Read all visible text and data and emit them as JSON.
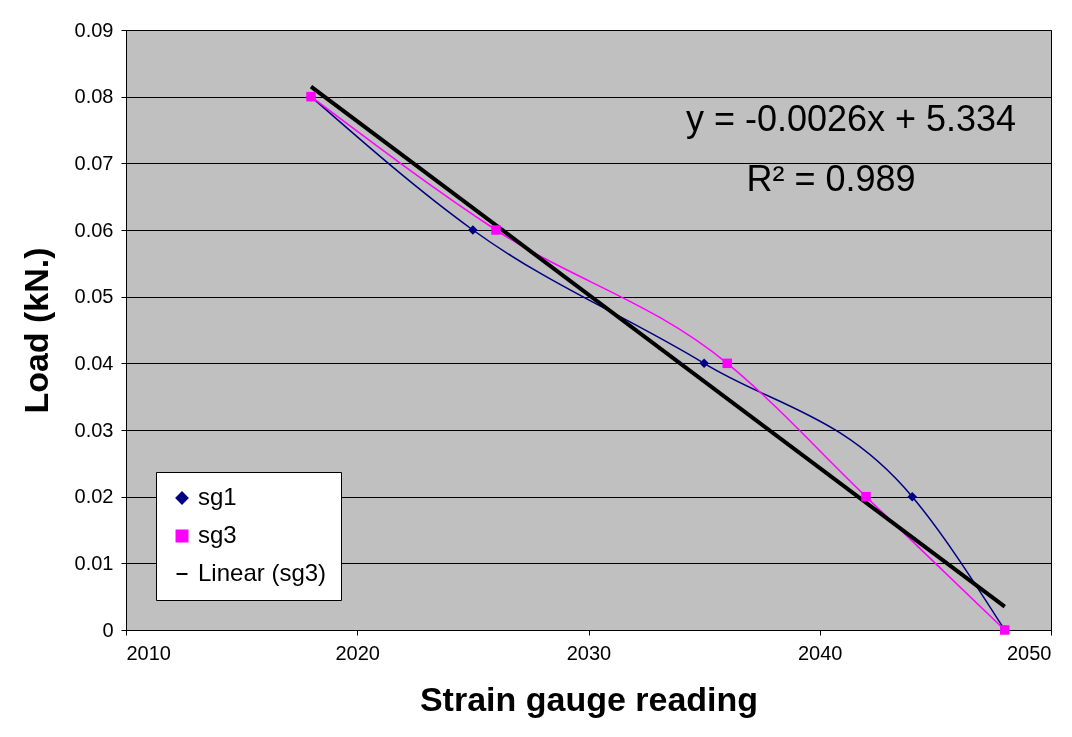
{
  "chart_data": {
    "type": "line",
    "xlabel": "Strain gauge reading",
    "ylabel": "Load (kN.)",
    "xlim": [
      2010,
      2050
    ],
    "xticks": [
      2010,
      2020,
      2030,
      2040,
      2050
    ],
    "ylim": [
      0,
      0.09
    ],
    "yticks": [
      0,
      0.01,
      0.02,
      0.03,
      0.04,
      0.05,
      0.06,
      0.07,
      0.08,
      0.09
    ],
    "grid": "y",
    "legend": "bottom left",
    "series": [
      {
        "name": "sg1",
        "color": "#000080",
        "marker": "diamond",
        "x": [
          2018,
          2025,
          2035,
          2044,
          2048
        ],
        "values": [
          0.08,
          0.06,
          0.04,
          0.02,
          0
        ]
      },
      {
        "name": "sg3",
        "color": "#ff00ff",
        "marker": "square",
        "x": [
          2018,
          2026,
          2036,
          2042,
          2048
        ],
        "values": [
          0.08,
          0.06,
          0.04,
          0.02,
          0
        ]
      },
      {
        "name": "Linear (sg3)",
        "color": "#000000",
        "marker": "none",
        "x": [
          2018,
          2048
        ],
        "values": [
          0.0815,
          0.0035
        ]
      }
    ],
    "annotations": [
      "y = -0.0026x + 5.334",
      "R² = 0.989"
    ]
  }
}
